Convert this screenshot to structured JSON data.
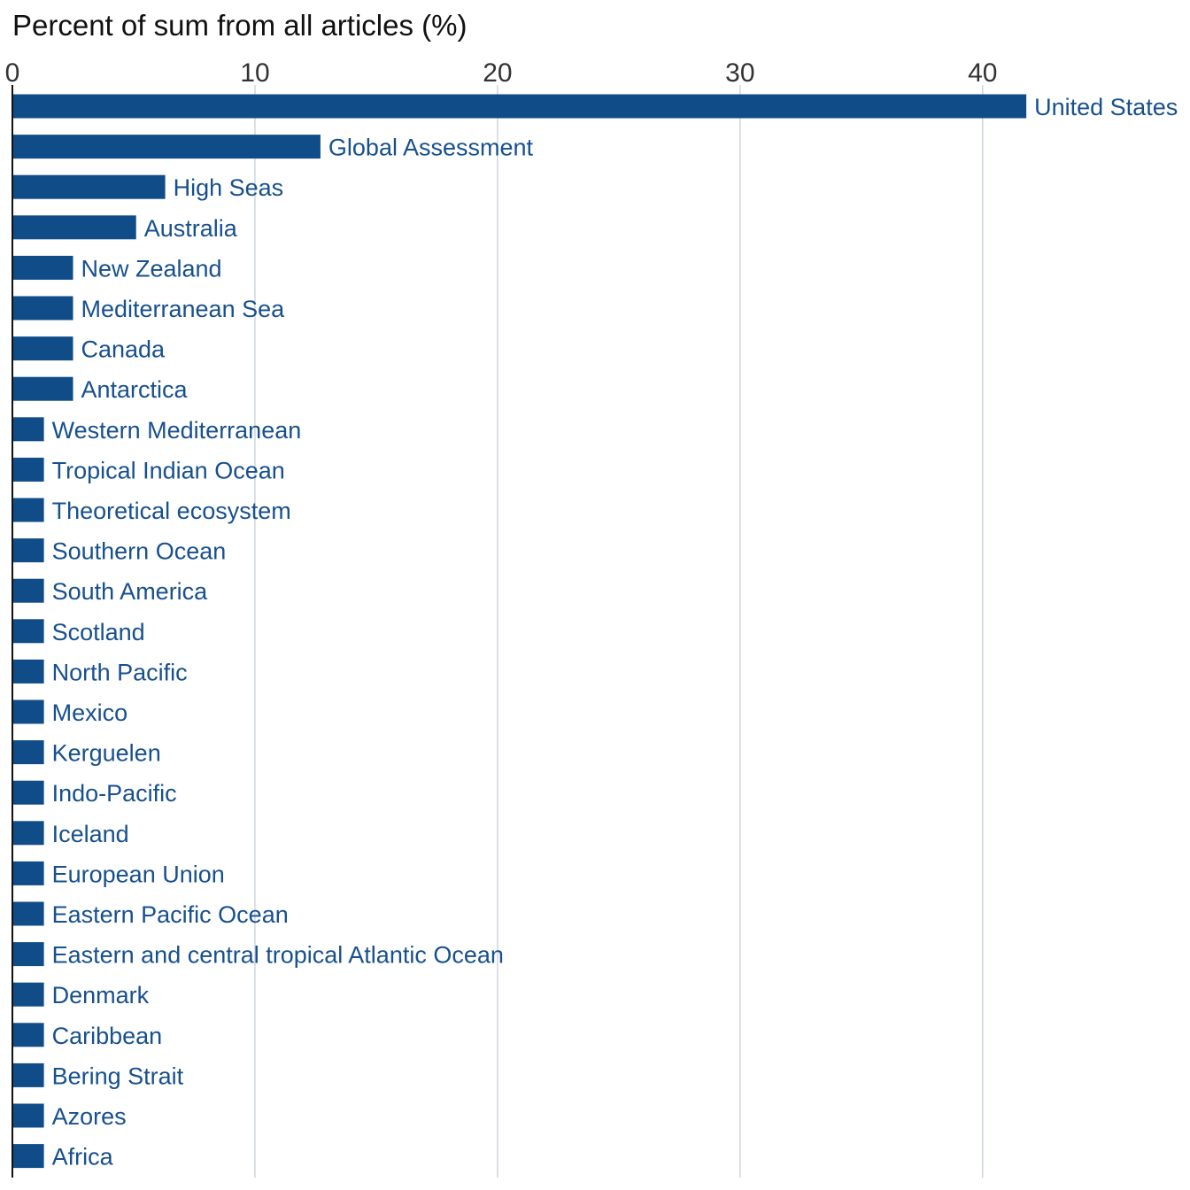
{
  "chart_data": {
    "type": "bar",
    "orientation": "horizontal",
    "title": "Percent of sum from all articles (%)",
    "xlim": [
      0,
      43
    ],
    "x_ticks": [
      0,
      10,
      20,
      30,
      40
    ],
    "x_tick_labels": [
      "0",
      "10",
      "20",
      "30",
      "40"
    ],
    "grid": "vertical",
    "bar_color": "#0f4c88",
    "label_color": "#17508e",
    "categories": [
      "United States",
      "Global Assessment",
      "High Seas",
      "Australia",
      "New Zealand",
      "Mediterranean Sea",
      "Canada",
      "Antarctica",
      "Western Mediterranean",
      "Tropical Indian Ocean",
      "Theoretical ecosystem",
      "Southern Ocean",
      "South America",
      "Scotland",
      "North Pacific",
      "Mexico",
      "Kerguelen",
      "Indo-Pacific",
      "Iceland",
      "European Union",
      "Eastern Pacific Ocean",
      "Eastern and central tropical Atlantic Ocean",
      "Denmark",
      "Caribbean",
      "Bering Strait",
      "Azores",
      "Africa"
    ],
    "values": [
      41.8,
      12.7,
      6.3,
      5.1,
      2.5,
      2.5,
      2.5,
      2.5,
      1.3,
      1.3,
      1.3,
      1.3,
      1.3,
      1.3,
      1.3,
      1.3,
      1.3,
      1.3,
      1.3,
      1.3,
      1.3,
      1.3,
      1.3,
      1.3,
      1.3,
      1.3,
      1.3
    ]
  }
}
